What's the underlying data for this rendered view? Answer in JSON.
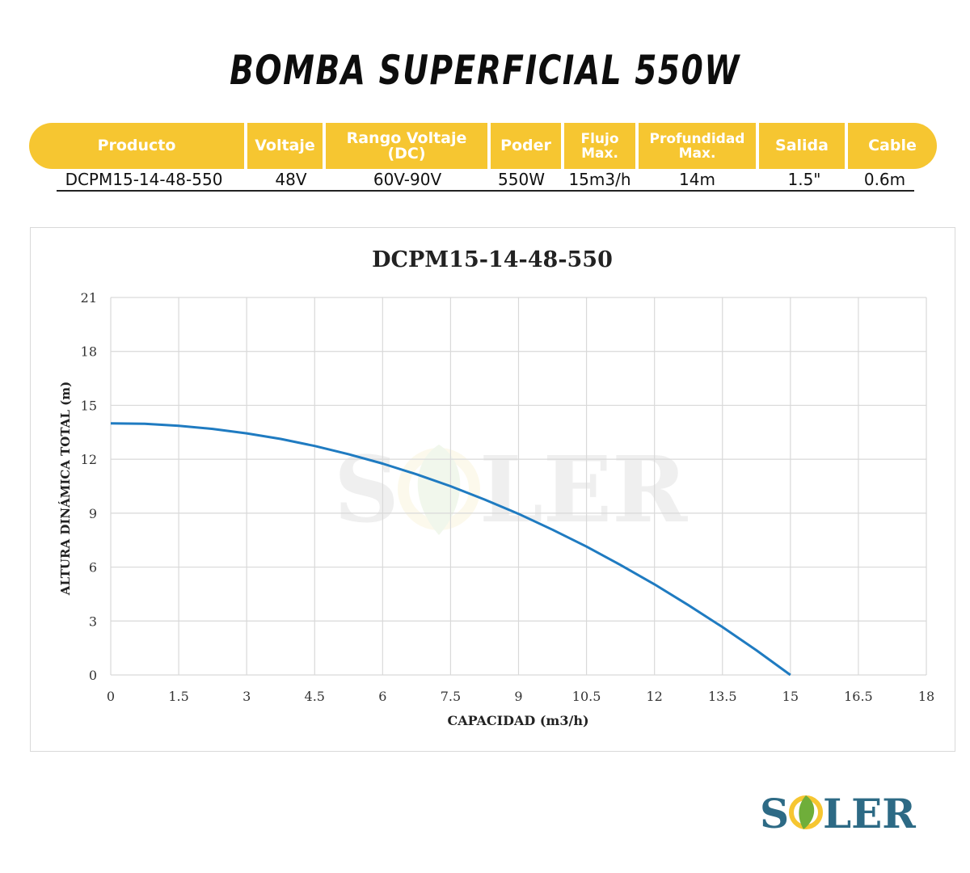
{
  "page": {
    "title": "BOMBA SUPERFICIAL 550W"
  },
  "spec_table": {
    "headers": [
      "Producto",
      "Voltaje",
      "Rango Voltaje (DC)",
      "Poder",
      "Flujo\nMax.",
      "Profundidad\nMax.",
      "Salida",
      "Cable"
    ],
    "row": [
      "DCPM15-14-48-550",
      "48V",
      "60V-90V",
      "550W",
      "15m3/h",
      "14m",
      "1.5\"",
      "0.6m"
    ]
  },
  "brand": {
    "name": "SOLER",
    "colors": {
      "primary": "#2d6a85",
      "accent_yellow": "#f6c631",
      "accent_green": "#6fae3a"
    }
  },
  "colors": {
    "header_bg": "#f6c631",
    "curve": "#1f7bc1",
    "grid": "#d9d9d9"
  },
  "chart_data": {
    "type": "line",
    "title": "DCPM15-14-48-550",
    "xlabel": "CAPACIDAD (m3/h)",
    "ylabel": "ALTURA DINÁMICA TOTAL (m)",
    "xlim": [
      0,
      18
    ],
    "ylim": [
      0,
      21
    ],
    "x_ticks": [
      "0",
      "1.5",
      "3",
      "4.5",
      "6",
      "7.5",
      "9",
      "10.5",
      "12",
      "13.5",
      "15",
      "16.5",
      "18"
    ],
    "y_ticks": [
      "0",
      "3",
      "6",
      "9",
      "12",
      "15",
      "18",
      "21"
    ],
    "grid": true,
    "legend": "none",
    "series": [
      {
        "x": [
          0,
          0.75,
          1.5,
          2.25,
          3,
          3.75,
          4.5,
          5.25,
          6,
          6.75,
          7.5,
          8.25,
          9,
          9.75,
          10.5,
          11.25,
          12,
          12.75,
          13.5,
          14.25,
          15
        ],
        "y": [
          14.0,
          13.97,
          13.86,
          13.69,
          13.44,
          13.13,
          12.74,
          12.28,
          11.76,
          11.16,
          10.5,
          9.76,
          8.96,
          8.08,
          7.14,
          6.12,
          5.04,
          3.88,
          2.66,
          1.37,
          0.0
        ],
        "color": "#1f7bc1"
      }
    ]
  }
}
